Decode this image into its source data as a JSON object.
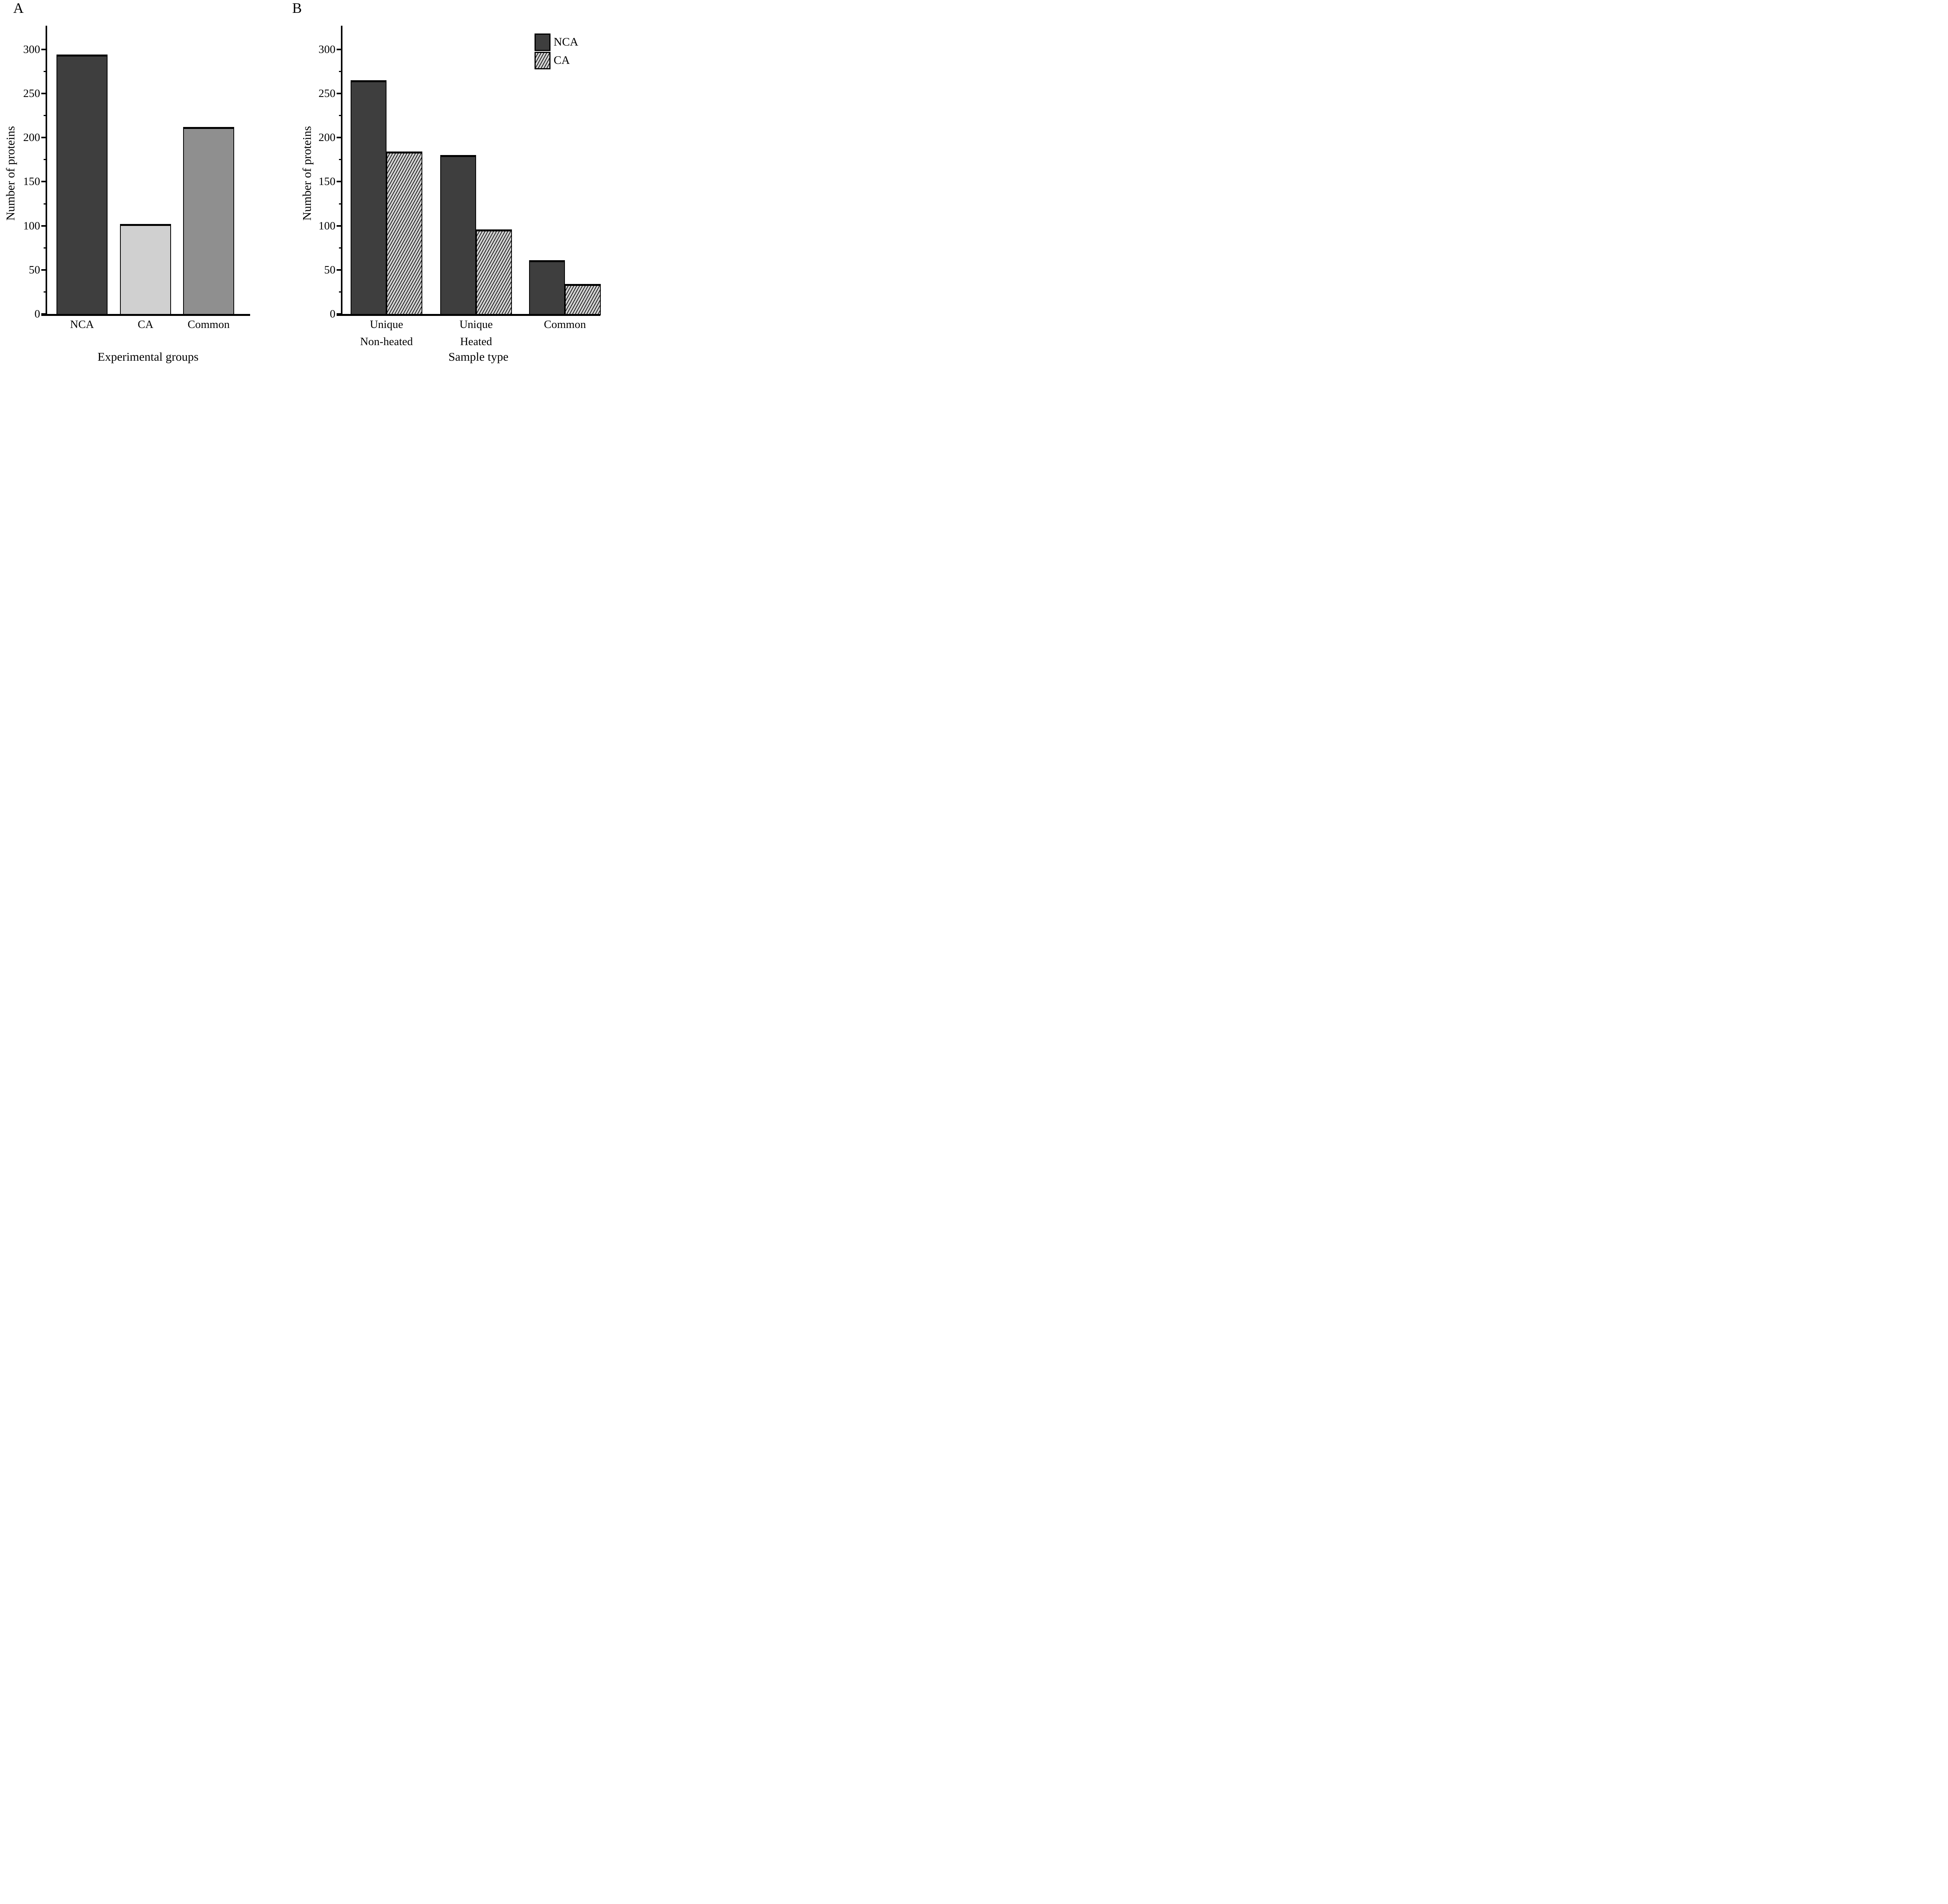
{
  "chart_data": [
    {
      "panel": "A",
      "type": "bar",
      "categories": [
        "NCA",
        "CA",
        "Common"
      ],
      "values": [
        294,
        102,
        212
      ],
      "bar_colors": [
        "#3e3e3e",
        "#d0d0d0",
        "#8f8f8f"
      ],
      "xlabel": "Experimental groups",
      "ylabel": "Number of proteins",
      "ylim": [
        0,
        325
      ],
      "yticks": [
        0,
        50,
        100,
        150,
        200,
        250,
        300
      ],
      "grid": false,
      "legend": null
    },
    {
      "panel": "B",
      "type": "grouped-bar",
      "categories": [
        [
          "Unique",
          "Non-heated"
        ],
        [
          "Unique",
          "Heated"
        ],
        [
          "Common"
        ]
      ],
      "series": [
        {
          "name": "NCA",
          "style": "solid",
          "color": "#3e3e3e",
          "values": [
            265,
            180,
            61
          ]
        },
        {
          "name": "CA",
          "style": "hatched",
          "color": "#d2d2d2",
          "hatch_color": "#000000",
          "values": [
            184,
            96,
            34
          ]
        }
      ],
      "xlabel": "Sample type",
      "ylabel": "Number of proteins",
      "ylim": [
        0,
        325
      ],
      "yticks": [
        0,
        50,
        100,
        150,
        200,
        250,
        300
      ],
      "grid": false,
      "legend_position": "top-right"
    }
  ]
}
